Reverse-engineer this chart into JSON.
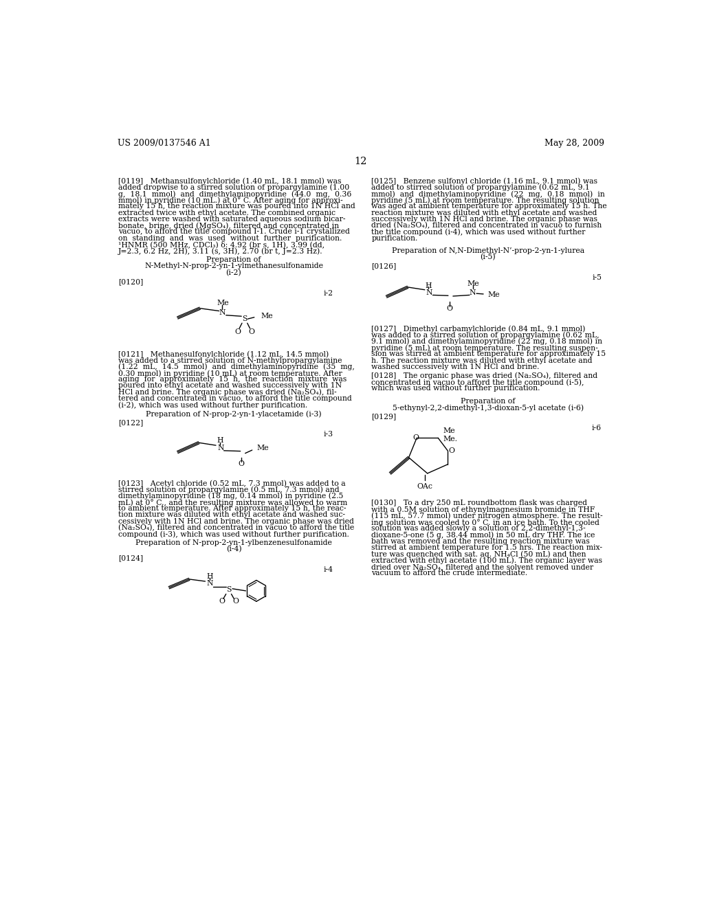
{
  "bg_color": "#ffffff",
  "header_left": "US 2009/0137546 A1",
  "header_right": "May 28, 2009",
  "page_number": "12",
  "fs": 7.8,
  "fs_header": 9.0
}
